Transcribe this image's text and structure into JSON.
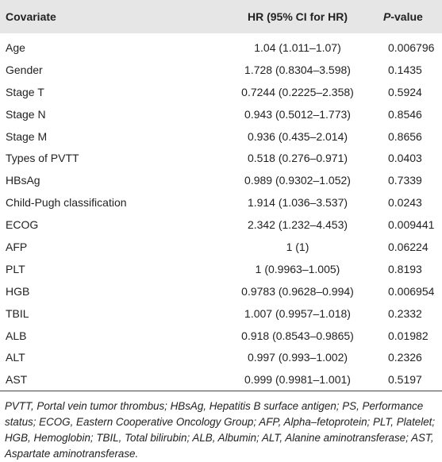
{
  "table": {
    "header": [
      "Covariate",
      "HR (95% CI for HR)",
      "P-value"
    ],
    "rows": [
      [
        "Age",
        "1.04 (1.011–1.07)",
        "0.006796"
      ],
      [
        "Gender",
        "1.728 (0.8304–3.598)",
        "0.1435"
      ],
      [
        "Stage T",
        "0.7244 (0.2225–2.358)",
        "0.5924"
      ],
      [
        "Stage N",
        "0.943 (0.5012–1.773)",
        "0.8546"
      ],
      [
        "Stage M",
        "0.936 (0.435–2.014)",
        "0.8656"
      ],
      [
        "Types of PVTT",
        "0.518 (0.276–0.971)",
        "0.0403"
      ],
      [
        "HBsAg",
        "0.989 (0.9302–1.052)",
        "0.7339"
      ],
      [
        "Child-Pugh classification",
        "1.914 (1.036–3.537)",
        "0.0243"
      ],
      [
        "ECOG",
        "2.342 (1.232–4.453)",
        "0.009441"
      ],
      [
        "AFP",
        "1 (1)",
        "0.06224"
      ],
      [
        "PLT",
        "1 (0.9963–1.005)",
        "0.8193"
      ],
      [
        "HGB",
        "0.9783 (0.9628–0.994)",
        "0.006954"
      ],
      [
        "TBIL",
        "1.007 (0.9957–1.018)",
        "0.2332"
      ],
      [
        "ALB",
        "0.918 (0.8543–0.9865)",
        "0.01982"
      ],
      [
        "ALT",
        "0.997 (0.993–1.002)",
        "0.2326"
      ],
      [
        "AST",
        "0.999 (0.9981–1.001)",
        "0.5197"
      ]
    ]
  },
  "footnote": "PVTT, Portal vein tumor thrombus; HBsAg, Hepatitis B surface antigen; PS, Performance status; ECOG, Eastern Cooperative Oncology Group; AFP, Alpha–fetoprotein; PLT, Platelet; HGB, Hemoglobin; TBIL, Total bilirubin; ALB, Albumin; ALT, Alanine aminotransferase; AST, Aspartate aminotransferase."
}
